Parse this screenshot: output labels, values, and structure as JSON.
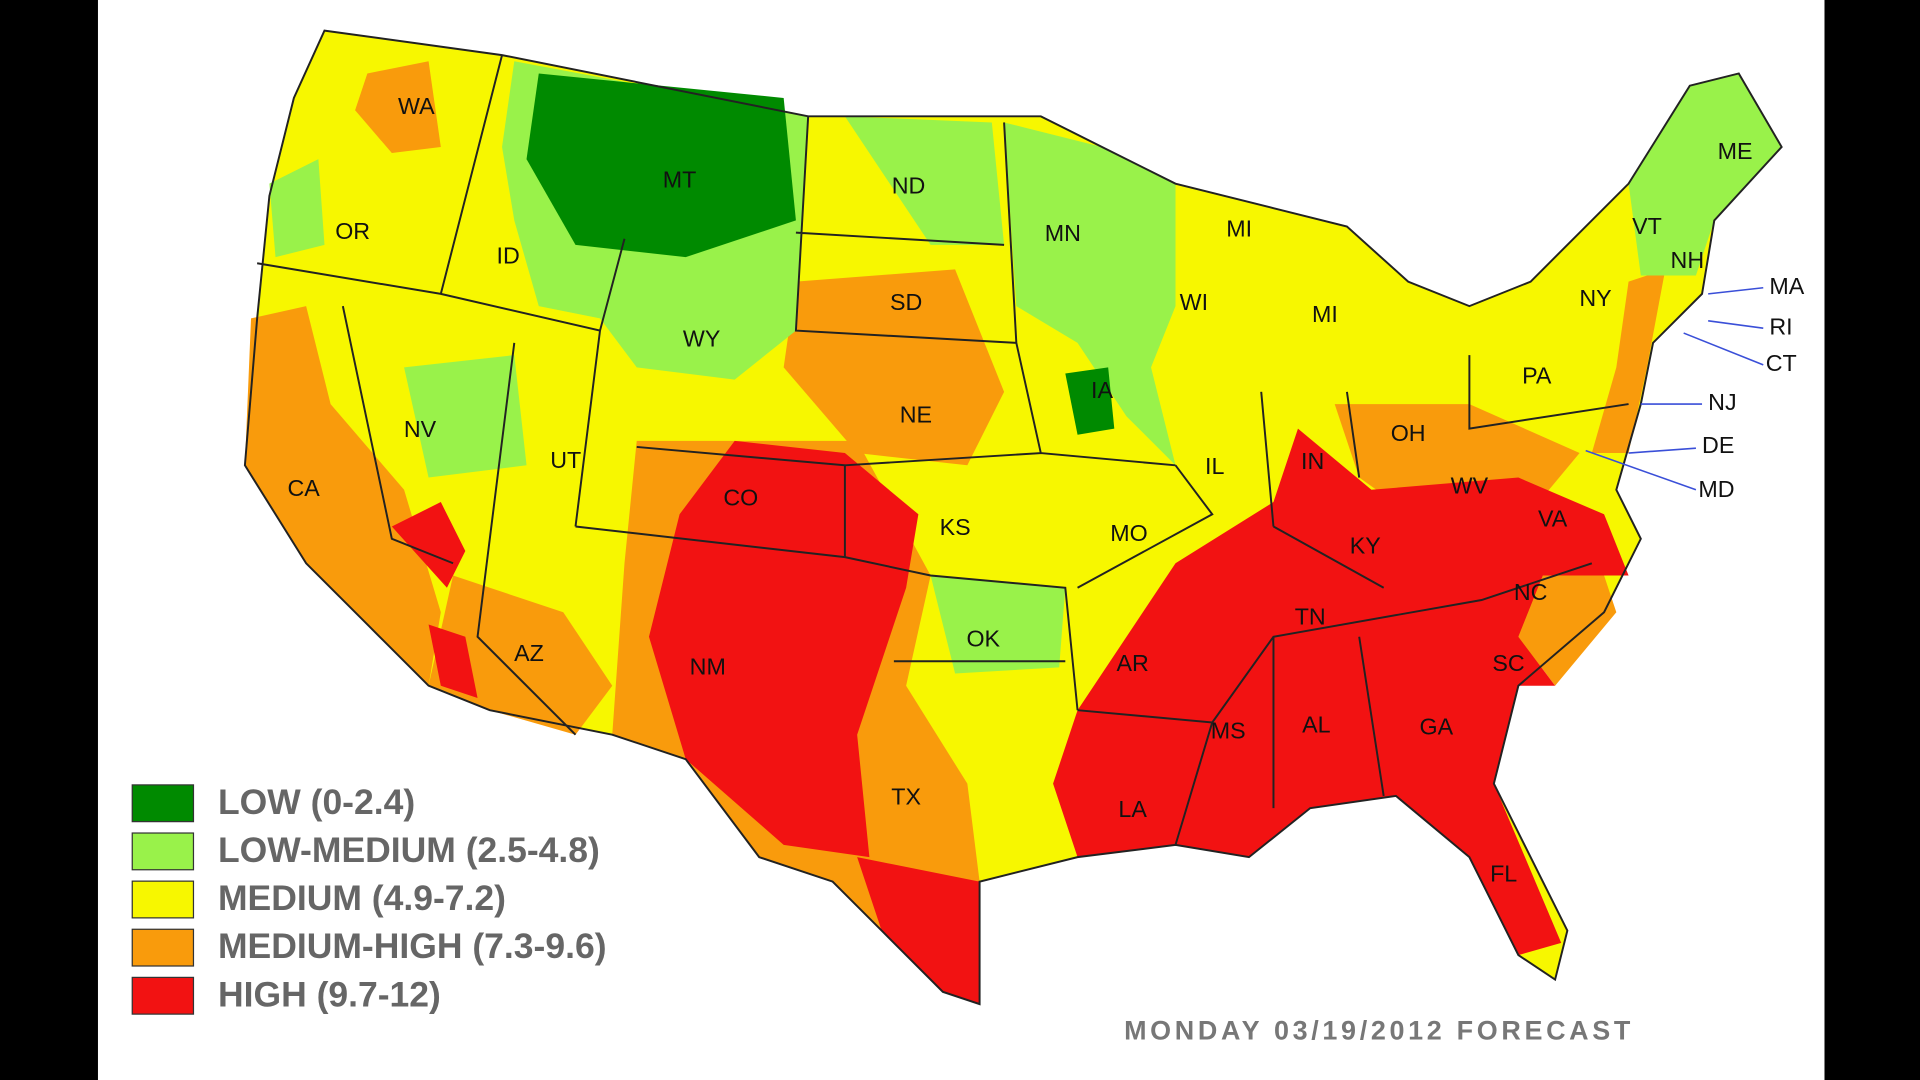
{
  "map": {
    "states": [
      "WA",
      "OR",
      "ID",
      "MT",
      "ND",
      "MN",
      "WI",
      "MI",
      "MI",
      "ME",
      "VT",
      "NH",
      "NY",
      "PA",
      "WY",
      "SD",
      "NE",
      "IA",
      "IL",
      "IN",
      "OH",
      "WV",
      "VA",
      "KY",
      "NC",
      "TN",
      "SC",
      "GA",
      "AL",
      "MS",
      "AR",
      "LA",
      "MO",
      "KS",
      "OK",
      "TX",
      "NM",
      "AZ",
      "CO",
      "UT",
      "NV",
      "CA",
      "FL",
      "MA",
      "RI",
      "CT",
      "NJ",
      "DE",
      "MD"
    ],
    "legend": [
      {
        "label": "LOW (0-2.4)",
        "color": "#008a00"
      },
      {
        "label": "LOW-MEDIUM (2.5-4.8)",
        "color": "#99f24a"
      },
      {
        "label": "MEDIUM (4.9-7.2)",
        "color": "#f7f700"
      },
      {
        "label": "MEDIUM-HIGH (7.3-9.6)",
        "color": "#f99b0c"
      },
      {
        "label": "HIGH (9.7-12)",
        "color": "#f21212"
      }
    ],
    "footer": "MONDAY 03/19/2012 FORECAST"
  }
}
